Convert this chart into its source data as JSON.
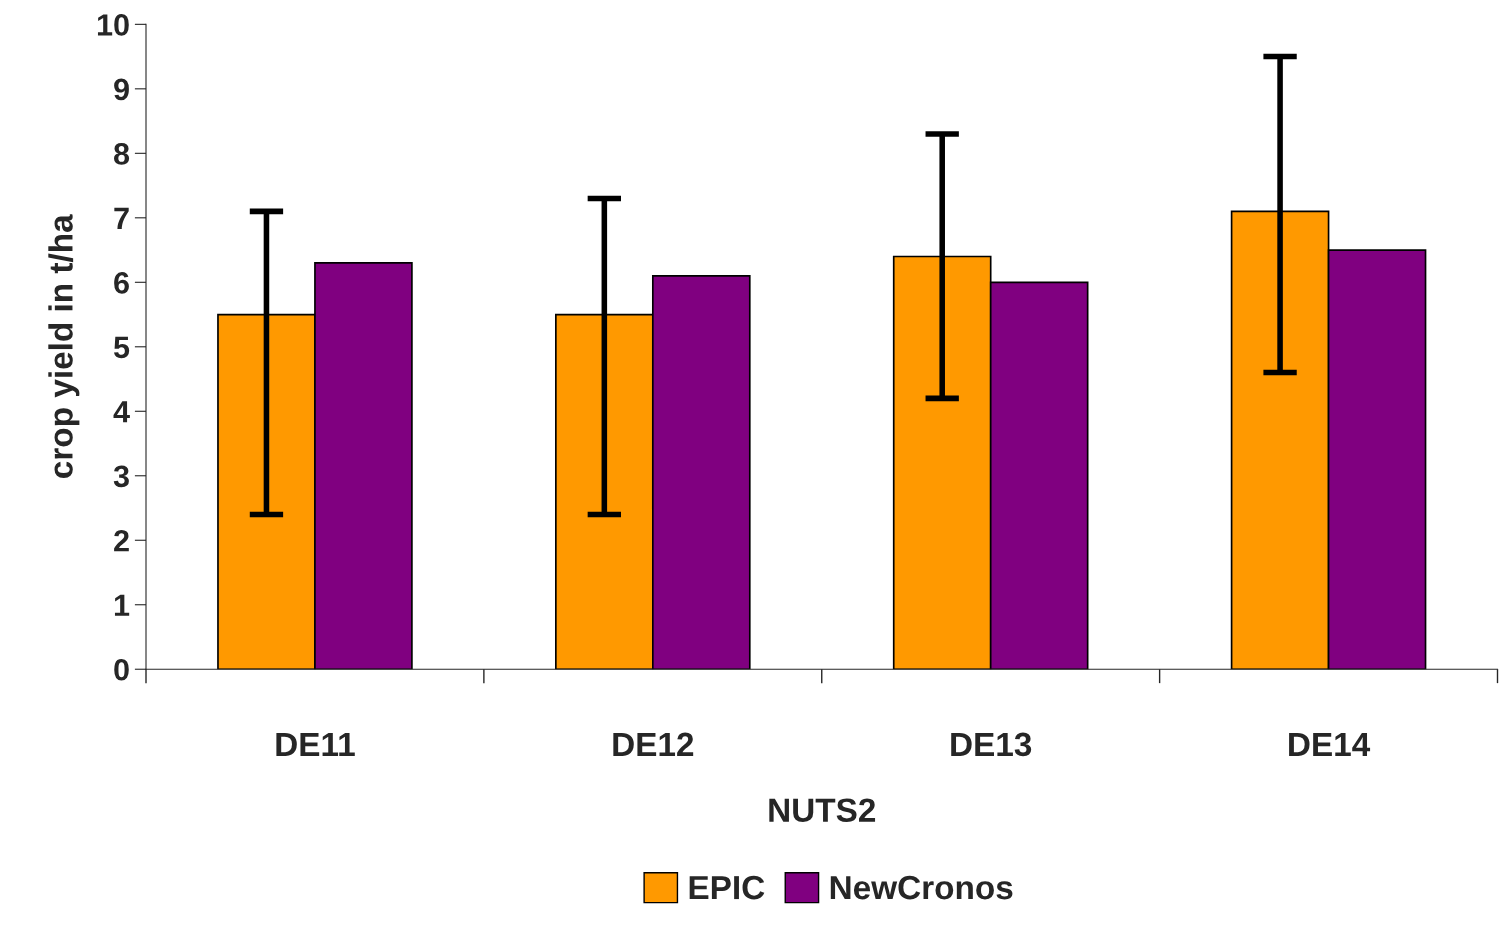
{
  "chart_data": {
    "type": "bar",
    "xlabel": "NUTS2",
    "ylabel": "crop yield in t/ha",
    "categories": [
      "DE11",
      "DE12",
      "DE13",
      "DE14"
    ],
    "series": [
      {
        "name": "EPIC",
        "color": "#ff9900",
        "values": [
          5.5,
          5.5,
          6.4,
          7.1
        ],
        "errors": [
          [
            2.4,
            7.1
          ],
          [
            2.4,
            7.3
          ],
          [
            4.2,
            8.3
          ],
          [
            4.6,
            9.5
          ]
        ]
      },
      {
        "name": "NewCronos",
        "color": "#800080",
        "values": [
          6.3,
          6.1,
          6.0,
          6.5
        ]
      }
    ],
    "ylim": [
      0,
      10
    ],
    "yticks": [
      0,
      1,
      2,
      3,
      4,
      5,
      6,
      7,
      8,
      9,
      10
    ],
    "grid": false,
    "legend": "bottom"
  }
}
